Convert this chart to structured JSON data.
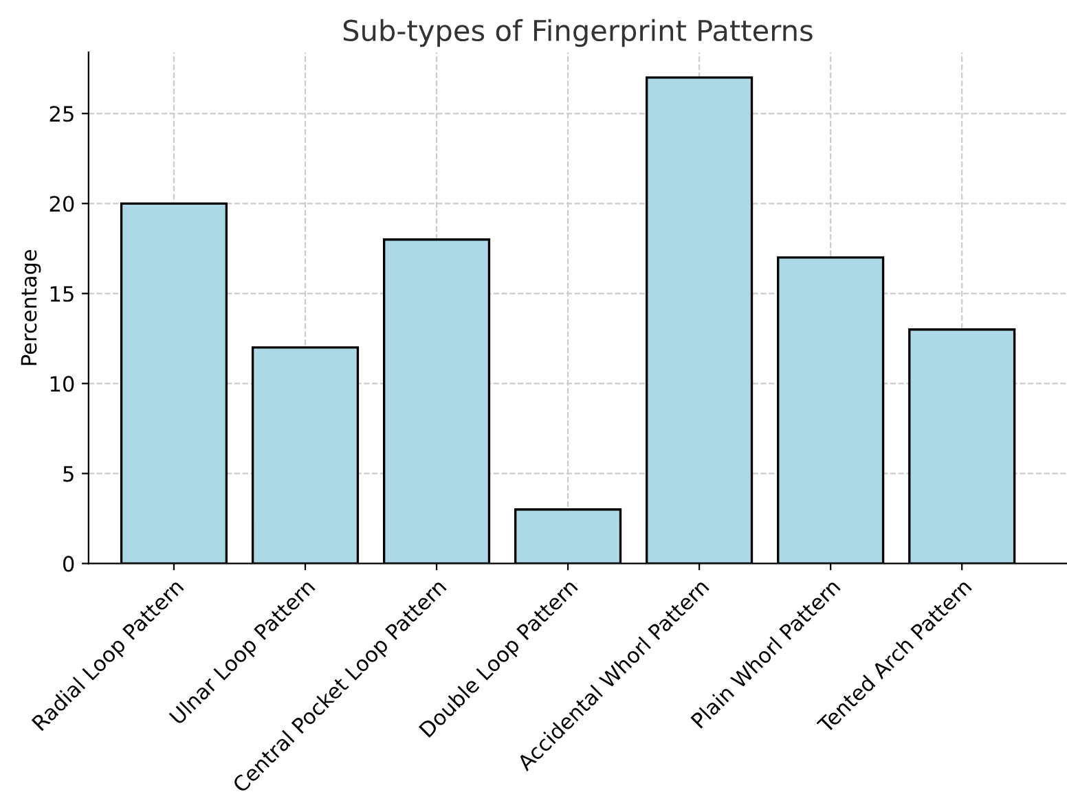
{
  "chart_data": {
    "type": "bar",
    "title": "Sub-types of Fingerprint Patterns",
    "ylabel": "Percentage",
    "categories": [
      "Radial Loop Pattern",
      "Ulnar Loop Pattern",
      "Central Pocket Loop Pattern",
      "Double Loop Pattern",
      "Accidental Whorl Pattern",
      "Plain Whorl Pattern",
      "Tented Arch Pattern"
    ],
    "values": [
      20,
      12,
      18,
      3,
      27,
      17,
      13
    ],
    "color": "#add8e6",
    "ylim": [
      0,
      28.4
    ],
    "yticks": [
      0,
      5,
      10,
      15,
      20,
      25
    ],
    "grid": true
  }
}
